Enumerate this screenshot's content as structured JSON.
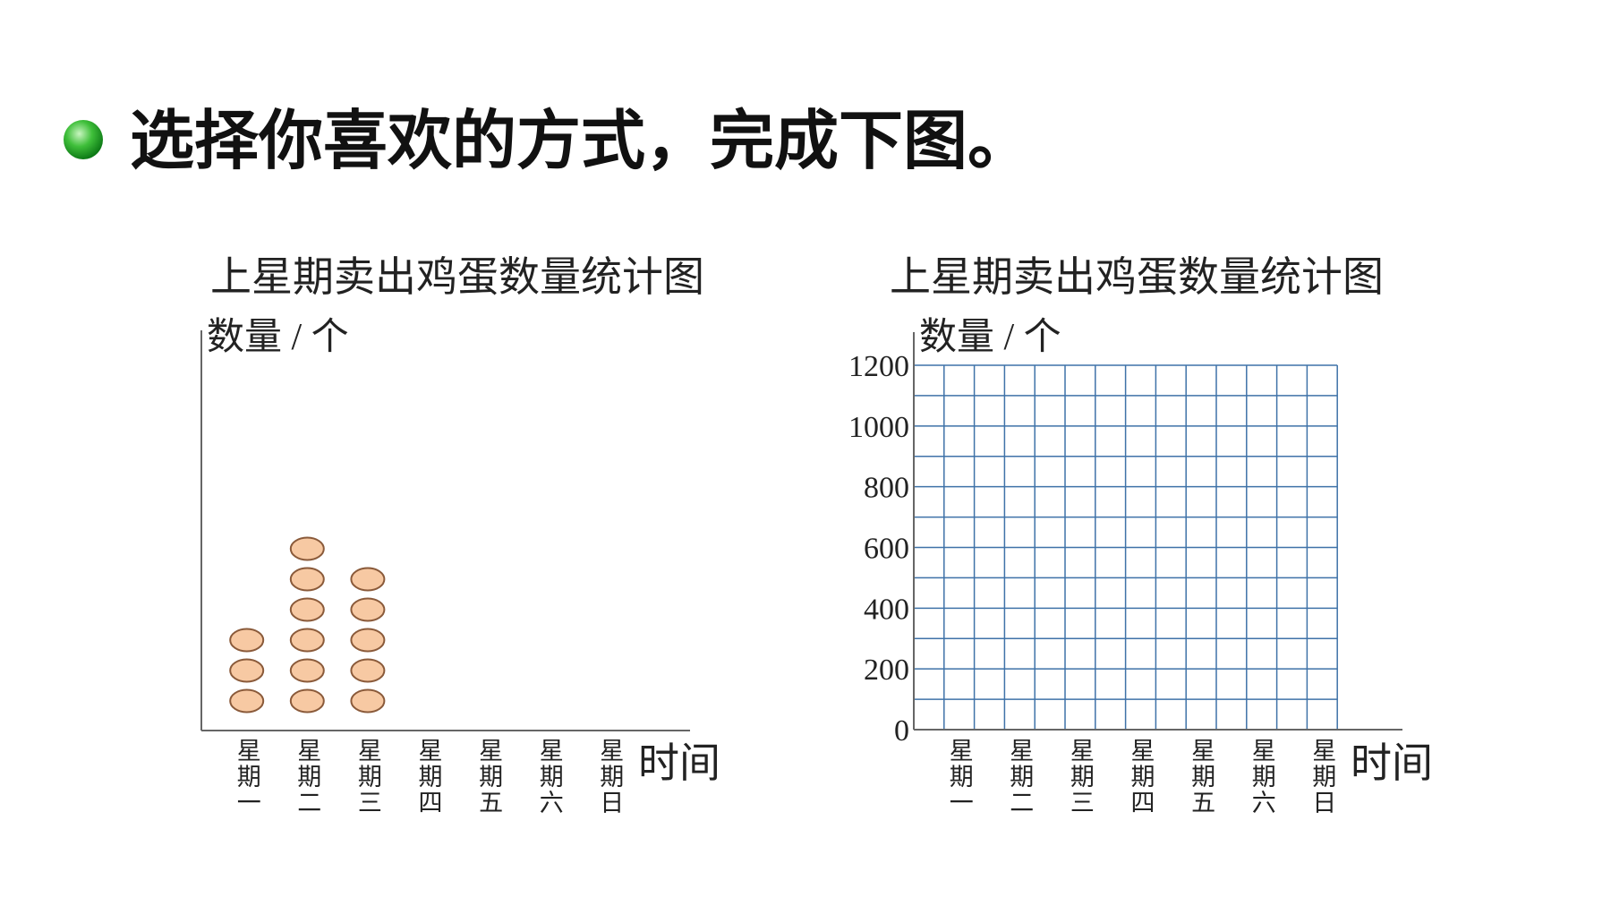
{
  "header": {
    "title": "选择你喜欢的方式，完成下图。"
  },
  "chart_data": [
    {
      "type": "pictograph",
      "title": "上星期卖出鸡蛋数量统计图",
      "y_label": "数量 / 个",
      "x_label": "时间",
      "categories": [
        "星期一",
        "星期二",
        "星期三",
        "星期四",
        "星期五",
        "星期六",
        "星期日"
      ],
      "values": [
        3,
        6,
        5,
        null,
        null,
        null,
        null
      ],
      "color": "#f7c9a3"
    },
    {
      "type": "bar",
      "title": "上星期卖出鸡蛋数量统计图",
      "y_label": "数量 / 个",
      "x_label": "时间",
      "categories": [
        "星期一",
        "星期二",
        "星期三",
        "星期四",
        "星期五",
        "星期六",
        "星期日"
      ],
      "values": [
        null,
        null,
        null,
        null,
        null,
        null,
        null
      ],
      "ylim": [
        0,
        1200
      ],
      "yticks": [
        0,
        200,
        400,
        600,
        800,
        1000,
        1200
      ],
      "minor_yticks": [
        100,
        300,
        500,
        700,
        900,
        1100
      ],
      "grid": true,
      "grid_color": "#3f72a8",
      "color": "#3f72a8"
    }
  ]
}
